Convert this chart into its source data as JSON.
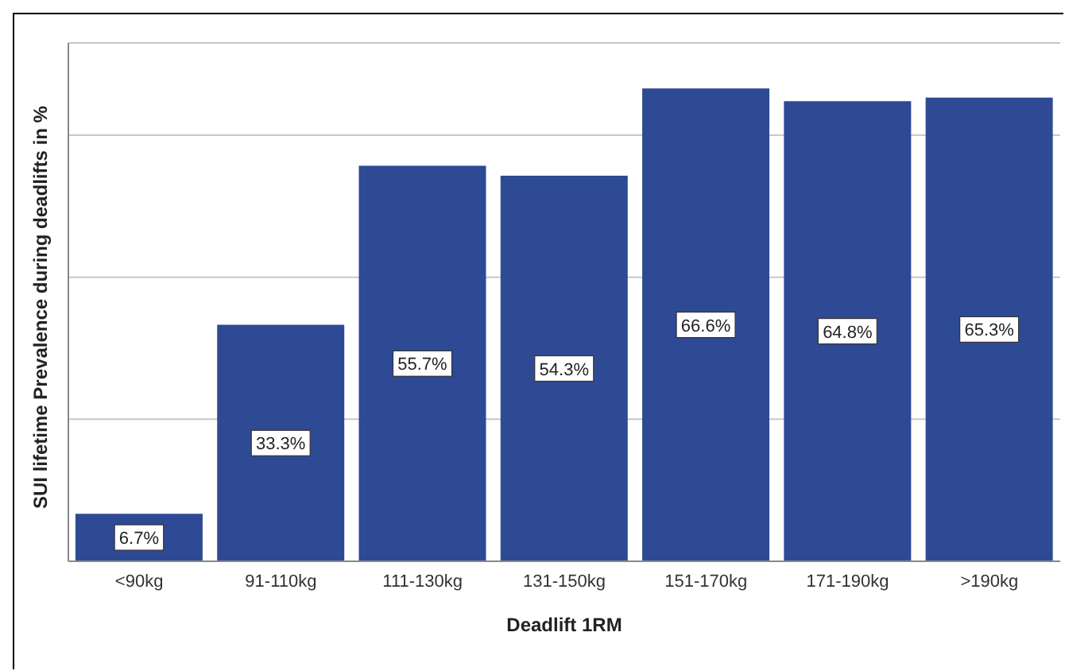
{
  "chart_data": {
    "type": "bar",
    "xlabel": "Deadlift 1RM",
    "ylabel": "SUI lifetime Prevalence during deadlifts in %",
    "categories": [
      "<90kg",
      "91-110kg",
      "111-130kg",
      "131-150kg",
      "151-170kg",
      "171-190kg",
      ">190kg"
    ],
    "values": [
      6.7,
      33.3,
      55.7,
      54.3,
      66.6,
      64.8,
      65.3
    ],
    "value_labels": [
      "6.7%",
      "33.3%",
      "55.7%",
      "54.3%",
      "66.6%",
      "64.8%",
      "65.3%"
    ],
    "color": "#2e4a94",
    "ylim": [
      0,
      73
    ],
    "yticks": [
      {
        "value": 0,
        "label": null
      },
      {
        "value": 20,
        "label": null
      },
      {
        "value": 40,
        "label": null
      },
      {
        "value": 60,
        "label": null
      }
    ],
    "grid": "y",
    "tick_labels": "x"
  }
}
